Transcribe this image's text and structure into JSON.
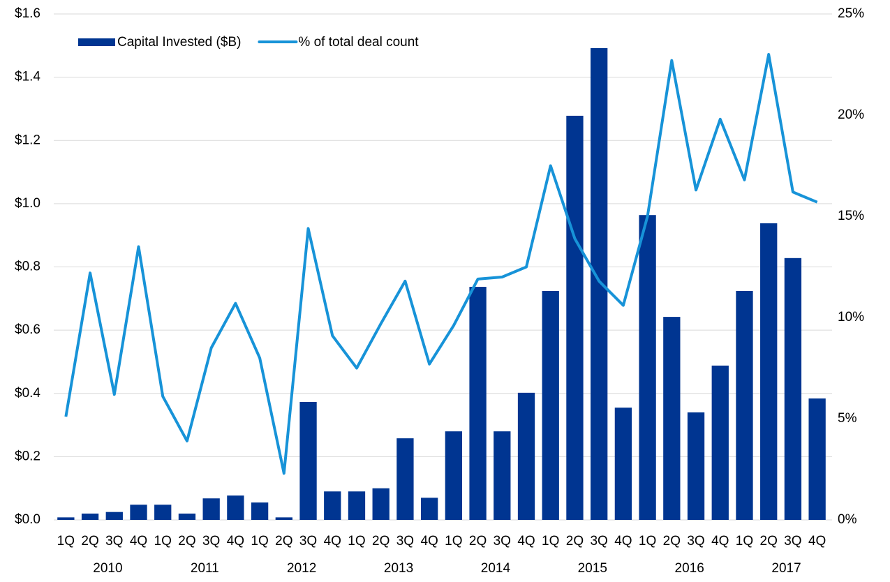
{
  "chart_data": {
    "type": "bar_line",
    "categories": [
      "1Q",
      "2Q",
      "3Q",
      "4Q",
      "1Q",
      "2Q",
      "3Q",
      "4Q",
      "1Q",
      "2Q",
      "3Q",
      "4Q",
      "1Q",
      "2Q",
      "3Q",
      "4Q",
      "1Q",
      "2Q",
      "3Q",
      "4Q",
      "1Q",
      "2Q",
      "3Q",
      "4Q",
      "1Q",
      "2Q",
      "3Q",
      "4Q",
      "1Q",
      "2Q",
      "3Q",
      "4Q"
    ],
    "years": [
      "2010",
      "2011",
      "2012",
      "2013",
      "2014",
      "2015",
      "2016",
      "2017"
    ],
    "series": [
      {
        "name": "Capital Invested ($B)",
        "type": "bar",
        "color": "#003591",
        "values": [
          0.008,
          0.02,
          0.025,
          0.048,
          0.048,
          0.02,
          0.068,
          0.077,
          0.055,
          0.008,
          0.373,
          0.09,
          0.09,
          0.1,
          0.258,
          0.07,
          0.28,
          0.737,
          0.28,
          0.402,
          0.724,
          1.278,
          1.492,
          0.355,
          0.964,
          0.642,
          0.34,
          0.488,
          0.724,
          0.938,
          0.828,
          0.384
        ]
      },
      {
        "name": "% of total deal count",
        "type": "line",
        "axis": "y2",
        "color": "#1793d8",
        "values": [
          5.1,
          12.2,
          6.2,
          13.5,
          6.1,
          3.9,
          8.5,
          10.7,
          8.0,
          2.3,
          14.4,
          9.1,
          7.5,
          9.7,
          11.8,
          7.7,
          9.6,
          11.9,
          12.0,
          12.5,
          17.5,
          13.9,
          11.8,
          10.6,
          15.0,
          22.7,
          16.3,
          19.8,
          16.8,
          23.0,
          16.2,
          15.7
        ]
      }
    ],
    "ylim": [
      0,
      1.6
    ],
    "yticks": [
      {
        "value": 0,
        "label": "$0.0"
      },
      {
        "value": 0.2,
        "label": "$0.2"
      },
      {
        "value": 0.4,
        "label": "$0.4"
      },
      {
        "value": 0.6,
        "label": "$0.6"
      },
      {
        "value": 0.8,
        "label": "$0.8"
      },
      {
        "value": 1.0,
        "label": "$1.0"
      },
      {
        "value": 1.2,
        "label": "$1.2"
      },
      {
        "value": 1.4,
        "label": "$1.4"
      },
      {
        "value": 1.6,
        "label": "$1.6"
      }
    ],
    "y2lim": [
      0,
      25
    ],
    "y2ticks": [
      {
        "value": 0,
        "label": "0%"
      },
      {
        "value": 5,
        "label": "5%"
      },
      {
        "value": 10,
        "label": "10%"
      },
      {
        "value": 15,
        "label": "15%"
      },
      {
        "value": 20,
        "label": "20%"
      },
      {
        "value": 25,
        "label": "25%"
      }
    ],
    "grid": true,
    "legend": "top-left"
  }
}
